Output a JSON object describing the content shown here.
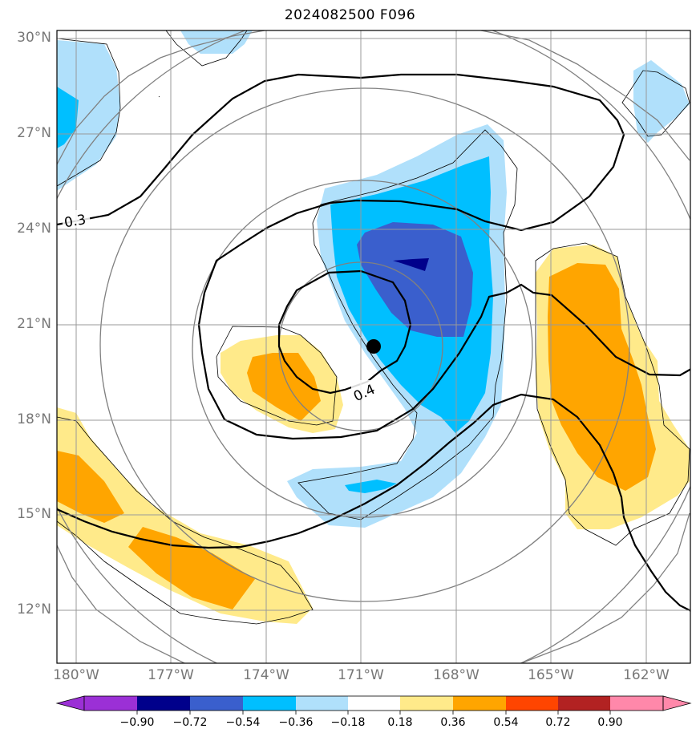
{
  "title": "2024082500 F096",
  "lat_labels": [
    "30°N",
    "27°N",
    "24°N",
    "21°N",
    "18°N",
    "15°N",
    "12°N"
  ],
  "lon_labels": [
    "180°W",
    "177°W",
    "174°W",
    "171°W",
    "168°W",
    "165°W",
    "162°W"
  ],
  "contour_labels": [
    "0.3",
    "0.4"
  ],
  "colorbar": {
    "ticks": [
      "−0.90",
      "−0.72",
      "−0.54",
      "−0.36",
      "−0.18",
      "0.18",
      "0.36",
      "0.54",
      "0.72",
      "0.90"
    ],
    "colors": [
      "#9b30d6",
      "#00008b",
      "#3a5fcd",
      "#00bfff",
      "#b0e0fb",
      "#ffffff",
      "#ffea8a",
      "#ffa500",
      "#ff4500",
      "#b22222",
      "#ff88aa"
    ]
  },
  "fill_colors": {
    "light_blue": "#b0e0fb",
    "deep_sky_blue": "#00bfff",
    "royal_blue": "#3a5fcd",
    "navy": "#00008b",
    "light_yellow": "#ffea8a",
    "orange": "#ffa500"
  },
  "center_marker": {
    "lon": "170.8°W",
    "lat": "20.3°N"
  }
}
